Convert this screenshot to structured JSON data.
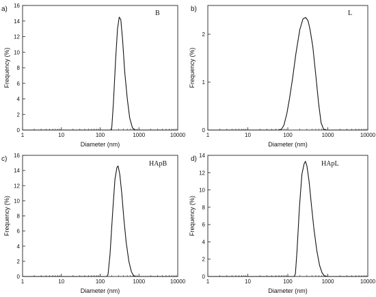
{
  "figure": {
    "panels": [
      {
        "panel_label": "a)",
        "chart_data": {
          "type": "line",
          "series_label": "B",
          "xlabel": "Diameter (nm)",
          "ylabel": "Frequency (%)",
          "xscale": "log",
          "xlim": [
            1,
            10000
          ],
          "ylim": [
            0,
            16
          ],
          "xticks": [
            1,
            10,
            100,
            1000,
            10000
          ],
          "xtick_labels": [
            "1",
            "10",
            "100",
            "1000",
            "10000"
          ],
          "yticks": [
            0,
            2,
            4,
            6,
            8,
            10,
            12,
            14,
            16
          ],
          "ytick_labels": [
            "0",
            "2",
            "4",
            "6",
            "8",
            "10",
            "12",
            "14",
            "16"
          ],
          "grid": false,
          "series": [
            {
              "x": [
                1,
                190,
                200,
                220,
                250,
                280,
                310,
                340,
                380,
                430,
                500,
                580,
                680,
                790,
                900,
                10000
              ],
              "y": [
                0,
                0,
                0.4,
                3.5,
                9.0,
                13.0,
                14.5,
                14.2,
                11.5,
                7.5,
                4.0,
                1.5,
                0.3,
                0,
                0,
                0
              ]
            }
          ]
        }
      },
      {
        "panel_label": "b)",
        "chart_data": {
          "type": "line",
          "series_label": "L",
          "xlabel": "Diameter (nm)",
          "ylabel": "Frequency (%)",
          "xscale": "log",
          "xlim": [
            1,
            10000
          ],
          "ylim": [
            0,
            2.6
          ],
          "xticks": [
            1,
            10,
            100,
            1000,
            10000
          ],
          "xtick_labels": [
            "1",
            "10",
            "100",
            "1000",
            "10000"
          ],
          "yticks": [
            0,
            1,
            2
          ],
          "ytick_labels": [
            "0",
            "1",
            "2"
          ],
          "grid": false,
          "series": [
            {
              "x": [
                1,
                60,
                70,
                80,
                95,
                110,
                130,
                160,
                200,
                240,
                280,
                320,
                360,
                420,
                500,
                590,
                680,
                780,
                900,
                10000
              ],
              "y": [
                0,
                0,
                0.02,
                0.1,
                0.35,
                0.65,
                1.05,
                1.6,
                2.1,
                2.32,
                2.35,
                2.28,
                2.1,
                1.75,
                1.15,
                0.55,
                0.15,
                0.02,
                0,
                0
              ]
            }
          ]
        }
      },
      {
        "panel_label": "c)",
        "chart_data": {
          "type": "line",
          "series_label": "HApB",
          "xlabel": "Diameter (nm)",
          "ylabel": "Frequency (%)",
          "xscale": "log",
          "xlim": [
            1,
            10000
          ],
          "ylim": [
            0,
            16
          ],
          "xticks": [
            1,
            10,
            100,
            1000,
            10000
          ],
          "xtick_labels": [
            "1",
            "10",
            "100",
            "1000",
            "10000"
          ],
          "yticks": [
            0,
            2,
            4,
            6,
            8,
            10,
            12,
            14,
            16
          ],
          "ytick_labels": [
            "0",
            "2",
            "4",
            "6",
            "8",
            "10",
            "12",
            "14",
            "16"
          ],
          "grid": false,
          "series": [
            {
              "x": [
                1,
                150,
                160,
                180,
                210,
                240,
                270,
                290,
                320,
                360,
                410,
                470,
                550,
                640,
                740,
                850,
                10000
              ],
              "y": [
                0,
                0,
                0.3,
                3.0,
                8.5,
                12.8,
                14.4,
                14.6,
                13.5,
                11.0,
                7.5,
                4.5,
                2.0,
                0.6,
                0.05,
                0,
                0
              ]
            }
          ]
        }
      },
      {
        "panel_label": "d)",
        "chart_data": {
          "type": "line",
          "series_label": "HApL",
          "xlabel": "Diameter (nm)",
          "ylabel": "Frequency (%)",
          "xscale": "log",
          "xlim": [
            1,
            10000
          ],
          "ylim": [
            0,
            14
          ],
          "xticks": [
            1,
            10,
            100,
            1000,
            10000
          ],
          "xtick_labels": [
            "1",
            "10",
            "100",
            "1000",
            "10000"
          ],
          "yticks": [
            0,
            2,
            4,
            6,
            8,
            10,
            12,
            14
          ],
          "ytick_labels": [
            "0",
            "2",
            "4",
            "6",
            "8",
            "10",
            "12",
            "14"
          ],
          "grid": false,
          "series": [
            {
              "x": [
                1,
                145,
                155,
                170,
                195,
                225,
                255,
                275,
                300,
                340,
                390,
                450,
                530,
                620,
                720,
                830,
                1000,
                10000
              ],
              "y": [
                0,
                0,
                0.3,
                3.0,
                8.0,
                11.8,
                13.0,
                13.3,
                12.8,
                11.0,
                8.2,
                5.5,
                3.0,
                1.3,
                0.4,
                0.05,
                0,
                0
              ]
            }
          ]
        }
      }
    ]
  }
}
